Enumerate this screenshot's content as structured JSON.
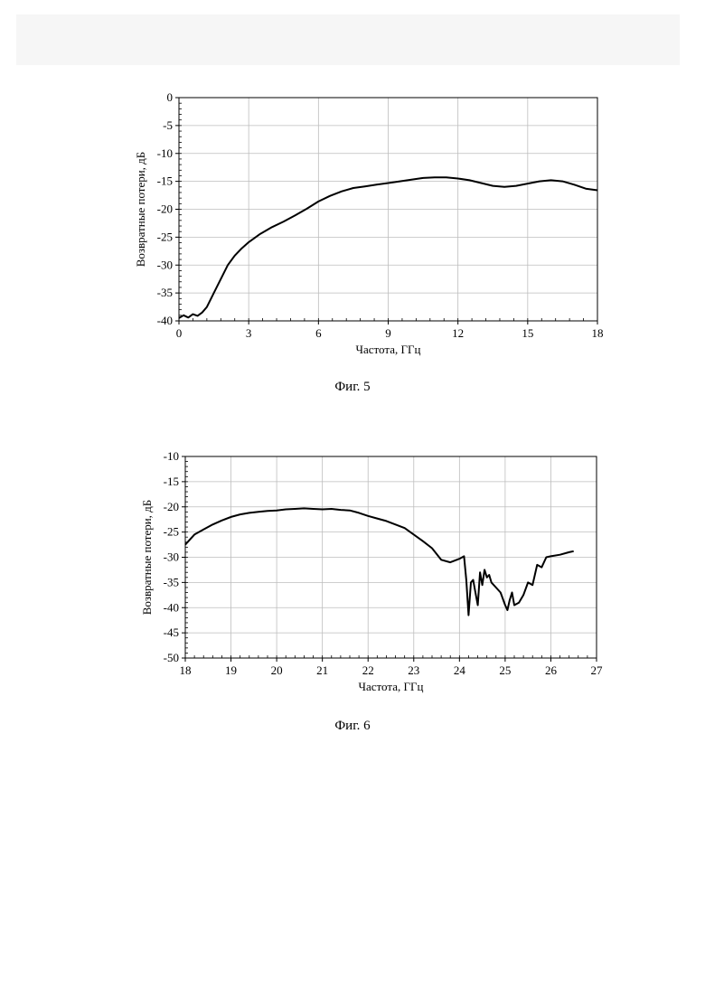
{
  "chart_data": [
    {
      "type": "line",
      "xlabel": "Частота, ГГц",
      "ylabel": "Возвратные потери, дБ",
      "xlim": [
        0,
        18
      ],
      "ylim": [
        -40,
        0
      ],
      "xticks": [
        0,
        3,
        6,
        9,
        12,
        15,
        18
      ],
      "yticks": [
        0,
        -5,
        -10,
        -15,
        -20,
        -25,
        -30,
        -35,
        -40
      ],
      "grid": true,
      "series": [
        {
          "color": "#000000",
          "x": [
            0,
            0.2,
            0.4,
            0.6,
            0.8,
            1.0,
            1.2,
            1.5,
            1.8,
            2.1,
            2.4,
            2.7,
            3.0,
            3.5,
            4.0,
            4.5,
            5.0,
            5.5,
            6.0,
            6.5,
            7.0,
            7.5,
            8.0,
            8.5,
            9.0,
            9.5,
            10.0,
            10.5,
            11.0,
            11.5,
            12.0,
            12.5,
            13.0,
            13.5,
            14.0,
            14.5,
            15.0,
            15.5,
            16.0,
            16.5,
            17.0,
            17.5,
            18.0
          ],
          "y": [
            -39.5,
            -39.0,
            -39.4,
            -38.8,
            -39.1,
            -38.5,
            -37.5,
            -35.0,
            -32.5,
            -30.0,
            -28.3,
            -27.0,
            -25.9,
            -24.4,
            -23.2,
            -22.2,
            -21.1,
            -19.9,
            -18.6,
            -17.6,
            -16.8,
            -16.2,
            -15.9,
            -15.6,
            -15.3,
            -15.0,
            -14.7,
            -14.4,
            -14.3,
            -14.3,
            -14.5,
            -14.8,
            -15.3,
            -15.8,
            -16.0,
            -15.8,
            -15.4,
            -15.0,
            -14.8,
            -15.0,
            -15.6,
            -16.3,
            -16.6
          ]
        }
      ]
    },
    {
      "type": "line",
      "xlabel": "Частота, ГГц",
      "ylabel": "Возвратные потери, дБ",
      "xlim": [
        18,
        27
      ],
      "ylim": [
        -50,
        -10
      ],
      "xticks": [
        18,
        19,
        20,
        21,
        22,
        23,
        24,
        25,
        26,
        27
      ],
      "yticks": [
        -10,
        -15,
        -20,
        -25,
        -30,
        -35,
        -40,
        -45,
        -50
      ],
      "grid": true,
      "series": [
        {
          "color": "#000000",
          "x": [
            18.0,
            18.2,
            18.4,
            18.6,
            18.8,
            19.0,
            19.2,
            19.4,
            19.6,
            19.8,
            20.0,
            20.2,
            20.4,
            20.6,
            20.8,
            21.0,
            21.2,
            21.4,
            21.6,
            21.8,
            22.0,
            22.2,
            22.4,
            22.6,
            22.8,
            23.0,
            23.2,
            23.4,
            23.6,
            23.8,
            24.0,
            24.1,
            24.15,
            24.2,
            24.25,
            24.3,
            24.35,
            24.4,
            24.45,
            24.5,
            24.55,
            24.6,
            24.65,
            24.7,
            24.8,
            24.9,
            25.0,
            25.05,
            25.1,
            25.15,
            25.2,
            25.3,
            25.4,
            25.5,
            25.6,
            25.7,
            25.8,
            25.9,
            26.0,
            26.2,
            26.4,
            26.5
          ],
          "y": [
            -27.5,
            -25.5,
            -24.5,
            -23.5,
            -22.7,
            -22.0,
            -21.5,
            -21.2,
            -21.0,
            -20.8,
            -20.7,
            -20.5,
            -20.4,
            -20.3,
            -20.4,
            -20.5,
            -20.4,
            -20.6,
            -20.7,
            -21.2,
            -21.8,
            -22.3,
            -22.8,
            -23.5,
            -24.2,
            -25.5,
            -26.8,
            -28.2,
            -30.5,
            -31.0,
            -30.3,
            -29.8,
            -34.5,
            -41.5,
            -35.0,
            -34.5,
            -37.0,
            -39.5,
            -33.0,
            -35.5,
            -32.5,
            -34.0,
            -33.5,
            -35.0,
            -36.0,
            -37.0,
            -39.5,
            -40.5,
            -38.5,
            -37.0,
            -39.5,
            -39.0,
            -37.5,
            -35.0,
            -35.5,
            -31.5,
            -32.0,
            -30.0,
            -29.8,
            -29.5,
            -29.0,
            -28.8
          ]
        }
      ]
    }
  ],
  "captions": [
    "Фиг. 5",
    "Фиг. 6"
  ]
}
